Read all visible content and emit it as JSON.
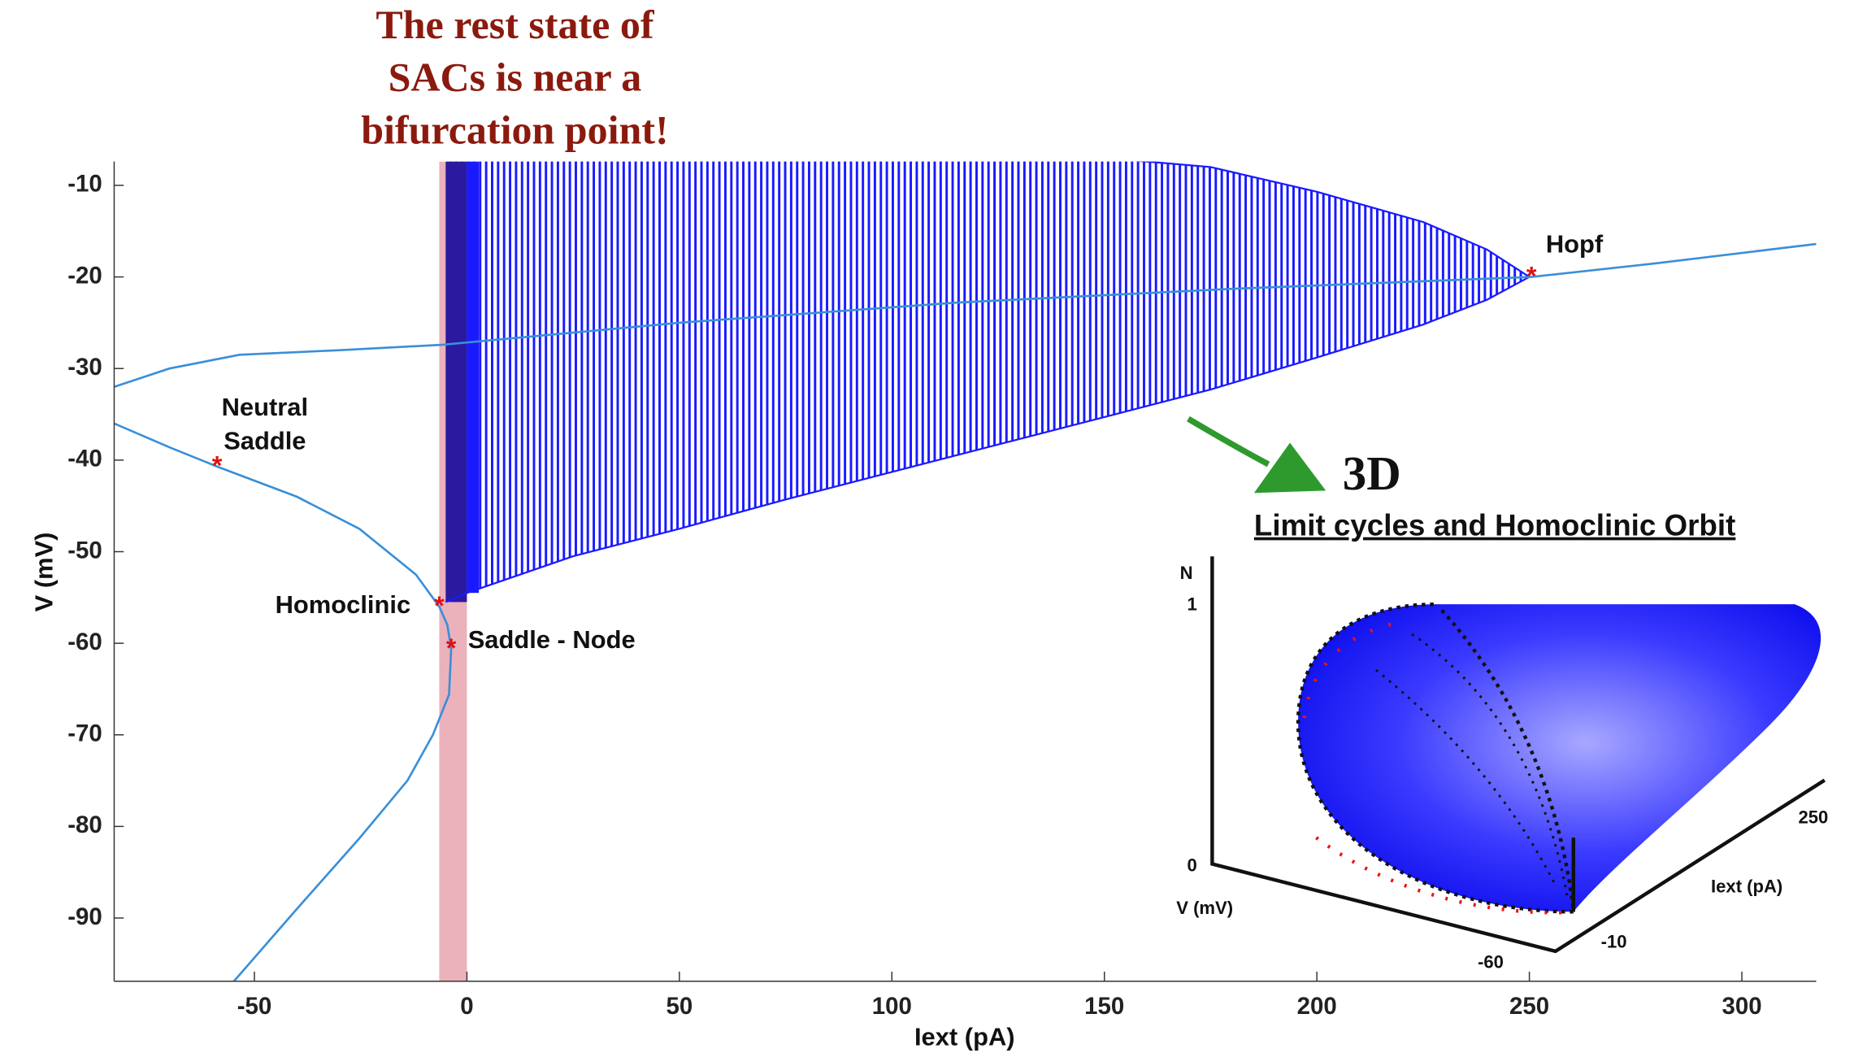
{
  "chart_data": {
    "type": "bifurcation",
    "title_lines": [
      "The rest state of",
      "SACs is near a",
      "bifurcation point!"
    ],
    "xlabel": "Iext (pA)",
    "ylabel": "V (mV)",
    "xlim": [
      -83,
      317.5
    ],
    "ylim": [
      -96.9,
      -7.4
    ],
    "xticks": [
      -50,
      0,
      50,
      100,
      150,
      200,
      250,
      300
    ],
    "yticks": [
      -90,
      -80,
      -70,
      -60,
      -50,
      -40,
      -30,
      -20,
      -10
    ],
    "equilibria": [
      {
        "color": "#3a8fd8",
        "x": [
          -55,
          -40,
          -25.3,
          -14,
          -8,
          -4.2,
          -3.7,
          -4.6,
          -6.5,
          -12,
          -25.3,
          -40,
          -58.8,
          -70,
          -83
        ],
        "values": [
          -97,
          -89,
          -81.3,
          -75,
          -70,
          -65.6,
          -60.6,
          -58,
          -56,
          -52.5,
          -47.5,
          -44,
          -40.7,
          -38.6,
          -36
        ]
      },
      {
        "color": "#3a8fd8",
        "x": [
          -83,
          -70,
          -53.5,
          -30,
          -5.6,
          50,
          115.4,
          180,
          250.5,
          280,
          317.5
        ],
        "values": [
          -32,
          -30,
          -28.5,
          -28,
          -27.4,
          -25,
          -22.8,
          -21.3,
          -20,
          -18.5,
          -16.4
        ]
      }
    ],
    "limit_cycles": {
      "color": "#1a1aff",
      "x": [
        -5,
        0,
        25,
        50,
        75,
        100,
        125,
        150,
        175,
        200,
        225,
        240,
        250
      ],
      "vmin": [
        -55.5,
        -54.5,
        -50.5,
        -47.5,
        -44.3,
        -41.3,
        -38.3,
        -35.3,
        -32.3,
        -28.8,
        -25.2,
        -22.5,
        -20
      ],
      "vmax": [
        -7,
        -7,
        -7,
        -7,
        -7,
        -7,
        -7,
        -7,
        -8,
        -10.7,
        -14,
        -17,
        -20
      ]
    },
    "highlight_band": {
      "color": "#e8a5b0",
      "x": [
        -6.5,
        0
      ]
    },
    "points": [
      {
        "label": [
          "Neutral",
          "Saddle"
        ],
        "x": -58.8,
        "y": -40.7
      },
      {
        "label": [
          "Homoclinic"
        ],
        "x": -6.5,
        "y": -56
      },
      {
        "label": [
          "Saddle - Node"
        ],
        "x": -3.7,
        "y": -60.6
      },
      {
        "label": [
          "Hopf"
        ],
        "x": 250.5,
        "y": -20
      }
    ],
    "inset": {
      "tag": "3D",
      "title": "Limit cycles and Homoclinic Orbit",
      "n_label": "N",
      "n_ticks": [
        "1",
        "0"
      ],
      "v_label": "V (mV)",
      "v_tick": "-60",
      "i_label": "Iext (pA)",
      "i_ticks": [
        "250",
        "-10"
      ]
    }
  }
}
